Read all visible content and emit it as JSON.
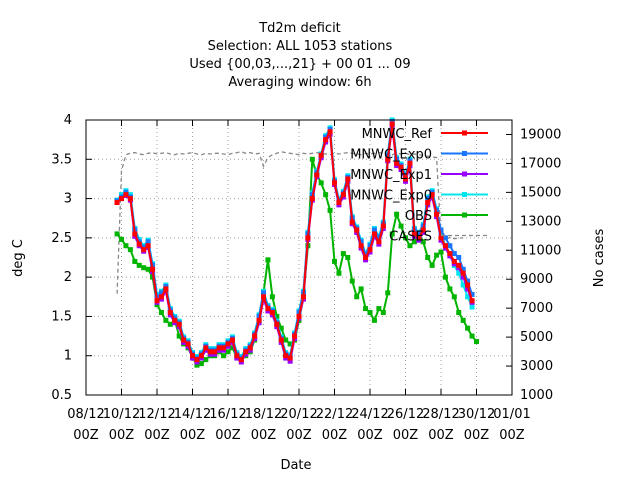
{
  "chart_data": {
    "type": "line",
    "title": [
      "Td2m deficit",
      "Selection: ALL    1053 stations",
      "Used {00,03,...,21} + 00 01 ... 09",
      "Averaging window:  6h"
    ],
    "xlabel": "Date",
    "ylabel": "deg C",
    "y2label": "No cases",
    "ylim": [
      0.5,
      4
    ],
    "y2lim": [
      1000,
      20000
    ],
    "xlim": [
      0,
      24
    ],
    "x_tick_labels": [
      {
        "x": 0,
        "top": "08/12",
        "bottom": "00Z"
      },
      {
        "x": 2,
        "top": "10/12",
        "bottom": "00Z"
      },
      {
        "x": 4,
        "top": "12/12",
        "bottom": "00Z"
      },
      {
        "x": 6,
        "top": "14/12",
        "bottom": "00Z"
      },
      {
        "x": 8,
        "top": "16/12",
        "bottom": "00Z"
      },
      {
        "x": 10,
        "top": "18/12",
        "bottom": "00Z"
      },
      {
        "x": 12,
        "top": "20/12",
        "bottom": "00Z"
      },
      {
        "x": 14,
        "top": "22/12",
        "bottom": "00Z"
      },
      {
        "x": 16,
        "top": "24/12",
        "bottom": "00Z"
      },
      {
        "x": 18,
        "top": "26/12",
        "bottom": "00Z"
      },
      {
        "x": 20,
        "top": "28/12",
        "bottom": "00Z"
      },
      {
        "x": 22,
        "top": "30/12",
        "bottom": "00Z"
      },
      {
        "x": 24,
        "top": "01/01",
        "bottom": "00Z"
      }
    ],
    "y_tick_labels": [
      "0.5",
      "1",
      "1.5",
      "2",
      "2.5",
      "3",
      "3.5",
      "4"
    ],
    "y_ticks": [
      0.5,
      1,
      1.5,
      2,
      2.5,
      3,
      3.5,
      4
    ],
    "y2_tick_labels": [
      "1000",
      "3000",
      "5000",
      "7000",
      "9000",
      "11000",
      "13000",
      "15000",
      "17000",
      "19000"
    ],
    "y2_ticks": [
      1000,
      3000,
      5000,
      7000,
      9000,
      11000,
      13000,
      15000,
      17000,
      19000
    ],
    "grid": true,
    "legend_position": "top-right",
    "x_step": 0.25,
    "x_start": 1.75,
    "series": [
      {
        "name": "MNWC_Ref",
        "color": "#ff0000",
        "marker": "square",
        "axis": "left",
        "values": [
          2.95,
          3.0,
          3.05,
          3.0,
          2.55,
          2.42,
          2.35,
          2.4,
          2.1,
          1.7,
          1.75,
          1.85,
          1.55,
          1.45,
          1.4,
          1.2,
          1.15,
          1.0,
          0.95,
          1.0,
          1.1,
          1.05,
          1.05,
          1.1,
          1.1,
          1.15,
          1.2,
          1.0,
          0.95,
          1.05,
          1.1,
          1.25,
          1.45,
          1.75,
          1.6,
          1.55,
          1.4,
          1.2,
          1.0,
          0.97,
          1.25,
          1.5,
          1.75,
          2.5,
          3.0,
          3.3,
          3.55,
          3.75,
          3.85,
          3.2,
          2.95,
          3.05,
          3.25,
          2.7,
          2.6,
          2.4,
          2.25,
          2.35,
          2.55,
          2.45,
          2.65,
          3.5,
          3.95,
          3.45,
          3.4,
          3.25,
          3.45,
          2.55,
          2.5,
          2.6,
          2.95,
          3.05,
          2.8,
          2.5,
          2.4,
          2.3,
          2.2,
          2.15,
          2.05,
          1.9,
          1.7
        ]
      },
      {
        "name": "MNWC_Exp0",
        "color": "#1a75ff",
        "marker": "square",
        "axis": "left",
        "values": [
          2.97,
          3.02,
          3.08,
          3.02,
          2.6,
          2.45,
          2.38,
          2.45,
          2.15,
          1.75,
          1.8,
          1.88,
          1.58,
          1.48,
          1.42,
          1.22,
          1.17,
          1.02,
          0.97,
          1.02,
          1.12,
          1.07,
          1.07,
          1.12,
          1.12,
          1.17,
          1.22,
          1.02,
          0.97,
          1.07,
          1.12,
          1.27,
          1.5,
          1.8,
          1.62,
          1.57,
          1.42,
          1.22,
          1.02,
          0.99,
          1.27,
          1.55,
          1.8,
          2.55,
          3.05,
          3.33,
          3.55,
          3.78,
          3.88,
          3.22,
          2.97,
          3.07,
          3.27,
          2.75,
          2.62,
          2.45,
          2.28,
          2.4,
          2.6,
          2.5,
          2.68,
          3.55,
          3.98,
          3.5,
          3.42,
          3.28,
          3.48,
          2.6,
          2.55,
          2.65,
          3.0,
          3.08,
          2.85,
          2.6,
          2.5,
          2.4,
          2.3,
          2.25,
          2.1,
          1.95,
          1.78
        ]
      },
      {
        "name": "MNWC_Exp1",
        "color": "#9a00ff",
        "marker": "square",
        "axis": "left",
        "values": [
          2.95,
          3.0,
          3.04,
          2.98,
          2.52,
          2.4,
          2.33,
          2.38,
          2.07,
          1.68,
          1.72,
          1.82,
          1.52,
          1.42,
          1.37,
          1.17,
          1.12,
          0.97,
          0.92,
          0.97,
          1.07,
          1.02,
          1.02,
          1.07,
          1.07,
          1.12,
          1.17,
          0.97,
          0.92,
          1.02,
          1.07,
          1.22,
          1.42,
          1.72,
          1.57,
          1.52,
          1.37,
          1.17,
          0.97,
          0.93,
          1.22,
          1.48,
          1.72,
          2.48,
          2.98,
          3.28,
          3.52,
          3.72,
          3.82,
          3.18,
          2.92,
          3.02,
          3.22,
          2.68,
          2.57,
          2.37,
          2.22,
          2.32,
          2.52,
          2.42,
          2.62,
          3.48,
          3.92,
          3.42,
          3.37,
          3.22,
          3.42,
          2.52,
          2.47,
          2.57,
          2.92,
          3.02,
          2.77,
          2.47,
          2.37,
          2.27,
          2.17,
          2.12,
          2.0,
          1.85,
          1.68
        ]
      },
      {
        "name": "MNWC_Exp0",
        "color": "#00e5ee",
        "marker": "square",
        "axis": "left",
        "values": [
          2.98,
          3.05,
          3.1,
          3.05,
          2.62,
          2.48,
          2.4,
          2.47,
          2.17,
          1.78,
          1.82,
          1.9,
          1.6,
          1.5,
          1.44,
          1.24,
          1.19,
          1.04,
          0.99,
          1.04,
          1.14,
          1.09,
          1.09,
          1.14,
          1.14,
          1.19,
          1.24,
          1.04,
          0.99,
          1.09,
          1.14,
          1.29,
          1.52,
          1.82,
          1.64,
          1.59,
          1.44,
          1.24,
          1.04,
          1.01,
          1.29,
          1.57,
          1.82,
          2.57,
          3.07,
          3.35,
          3.57,
          3.8,
          3.9,
          3.24,
          2.99,
          3.09,
          3.29,
          2.77,
          2.64,
          2.47,
          2.3,
          2.42,
          2.62,
          2.52,
          2.7,
          3.57,
          4.0,
          3.52,
          3.44,
          3.3,
          3.5,
          2.62,
          2.57,
          2.67,
          3.02,
          3.1,
          2.87,
          2.55,
          2.4,
          2.28,
          2.15,
          2.05,
          1.9,
          1.75,
          1.62
        ]
      },
      {
        "name": "OBS",
        "color": "#00b400",
        "marker": "square",
        "axis": "left",
        "values": [
          2.55,
          2.48,
          2.4,
          2.35,
          2.2,
          2.15,
          2.12,
          2.1,
          2.0,
          1.65,
          1.55,
          1.45,
          1.4,
          1.45,
          1.25,
          1.15,
          1.1,
          0.98,
          0.88,
          0.9,
          0.95,
          1.0,
          1.0,
          1.05,
          1.0,
          1.05,
          1.1,
          0.98,
          0.95,
          1.0,
          1.05,
          1.2,
          1.45,
          1.8,
          2.22,
          1.75,
          1.5,
          1.35,
          1.2,
          1.15,
          1.2,
          1.45,
          1.75,
          2.4,
          3.5,
          3.3,
          3.2,
          3.05,
          2.85,
          2.2,
          2.05,
          2.3,
          2.25,
          1.95,
          1.75,
          1.85,
          1.6,
          1.55,
          1.45,
          1.6,
          1.55,
          1.8,
          2.55,
          2.8,
          2.65,
          2.5,
          2.4,
          2.45,
          2.55,
          2.45,
          2.25,
          2.15,
          2.28,
          2.32,
          2.0,
          1.85,
          1.75,
          1.55,
          1.45,
          1.35,
          1.25,
          1.18
        ]
      },
      {
        "name": "CASES",
        "color": "#888888",
        "marker": "none",
        "dash": true,
        "axis": "right",
        "values": [
          8000,
          16500,
          17600,
          17700,
          17750,
          17650,
          17600,
          17700,
          17750,
          17650,
          17700,
          17750,
          17650,
          17600,
          17700,
          17650,
          17700,
          17750,
          17650,
          17600,
          17700,
          17650,
          17700,
          17700,
          17650,
          17600,
          17700,
          17750,
          17800,
          17700,
          17750,
          17650,
          17700,
          16800,
          17400,
          17600,
          17700,
          17800,
          17750,
          17700,
          17650,
          17600,
          17700,
          17650,
          17700,
          17750,
          17700,
          17650,
          17600,
          17700,
          17650,
          17700,
          17750,
          17700,
          17650,
          17600,
          17700,
          17650,
          17700,
          17750,
          17700,
          17650,
          17600,
          17700,
          17650,
          17700,
          17600,
          17650,
          17600,
          17550,
          17500,
          17450,
          17400,
          11800,
          11700,
          11900,
          11800,
          11850,
          11850
        ]
      }
    ]
  }
}
